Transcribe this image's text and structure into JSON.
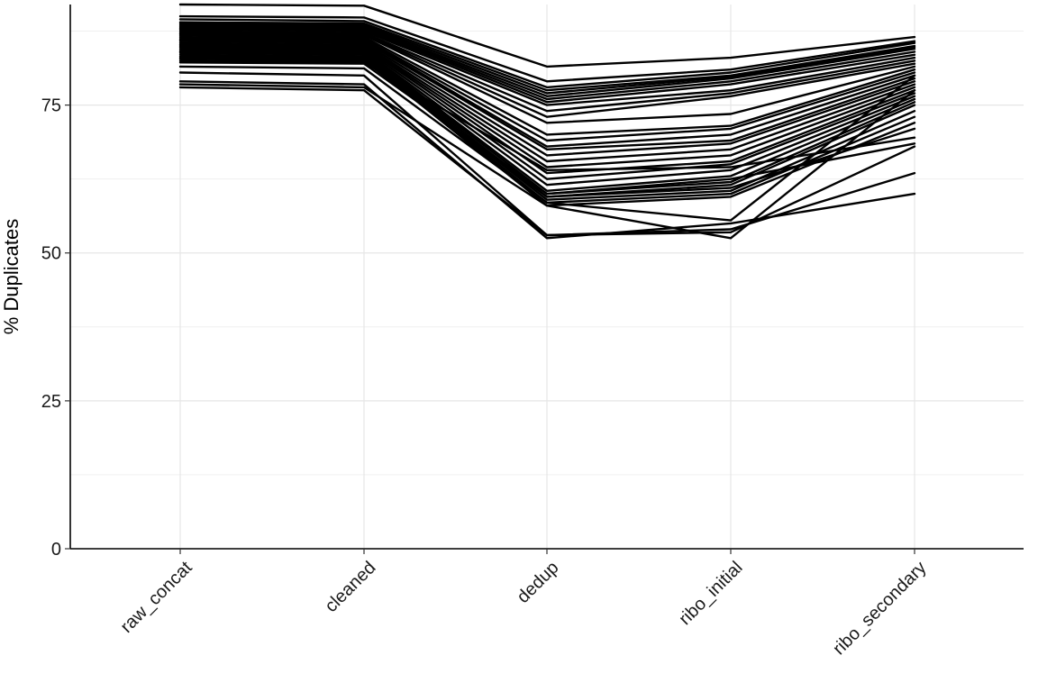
{
  "chart_data": {
    "type": "line",
    "title": "",
    "xlabel": "",
    "ylabel": "% Duplicates",
    "categories": [
      "raw_concat",
      "cleaned",
      "dedup",
      "ribo_initial",
      "ribo_secondary"
    ],
    "ylim": [
      0,
      92
    ],
    "yticks": [
      0,
      25,
      50,
      75
    ],
    "grid": true,
    "legend": "none",
    "line_color": "#000000",
    "series": [
      {
        "values": [
          92.0,
          91.8,
          81.5,
          83.0,
          86.5
        ]
      },
      {
        "values": [
          90.0,
          89.8,
          79.0,
          81.0,
          85.8
        ]
      },
      {
        "values": [
          89.5,
          89.2,
          78.0,
          80.5,
          85.5
        ]
      },
      {
        "values": [
          89.0,
          88.8,
          77.5,
          80.0,
          85.0
        ]
      },
      {
        "values": [
          88.8,
          88.5,
          77.0,
          79.8,
          84.8
        ]
      },
      {
        "values": [
          88.5,
          88.2,
          76.5,
          79.5,
          84.5
        ]
      },
      {
        "values": [
          88.2,
          88.0,
          76.0,
          79.0,
          84.0
        ]
      },
      {
        "values": [
          88.0,
          87.8,
          75.5,
          78.5,
          83.5
        ]
      },
      {
        "values": [
          87.8,
          87.5,
          75.0,
          77.5,
          83.0
        ]
      },
      {
        "values": [
          87.5,
          87.2,
          74.0,
          77.0,
          82.5
        ]
      },
      {
        "values": [
          87.2,
          87.0,
          73.0,
          76.5,
          82.0
        ]
      },
      {
        "values": [
          87.0,
          86.8,
          72.0,
          73.5,
          81.5
        ]
      },
      {
        "values": [
          86.8,
          86.5,
          70.0,
          71.5,
          81.0
        ]
      },
      {
        "values": [
          86.5,
          86.2,
          69.0,
          71.0,
          80.5
        ]
      },
      {
        "values": [
          86.2,
          86.0,
          68.0,
          70.0,
          80.0
        ]
      },
      {
        "values": [
          86.0,
          85.8,
          67.5,
          69.0,
          79.5
        ]
      },
      {
        "values": [
          85.8,
          85.5,
          66.5,
          68.5,
          79.0
        ]
      },
      {
        "values": [
          85.5,
          85.2,
          65.5,
          67.5,
          78.5
        ]
      },
      {
        "values": [
          85.2,
          85.0,
          64.5,
          66.5,
          78.0
        ]
      },
      {
        "values": [
          85.0,
          84.8,
          63.5,
          65.5,
          77.5
        ]
      },
      {
        "values": [
          84.8,
          84.5,
          62.5,
          65.0,
          77.0
        ]
      },
      {
        "values": [
          84.5,
          84.2,
          61.5,
          64.0,
          76.5
        ]
      },
      {
        "values": [
          84.2,
          84.0,
          60.5,
          63.0,
          76.0
        ]
      },
      {
        "values": [
          84.0,
          83.8,
          60.0,
          62.0,
          75.5
        ]
      },
      {
        "values": [
          83.8,
          83.5,
          59.5,
          61.5,
          75.0
        ]
      },
      {
        "values": [
          83.5,
          83.2,
          59.0,
          60.5,
          74.0
        ]
      },
      {
        "values": [
          83.2,
          83.0,
          58.5,
          60.0,
          73.0
        ]
      },
      {
        "values": [
          83.0,
          82.8,
          58.0,
          59.5,
          72.0
        ]
      },
      {
        "values": [
          82.8,
          82.5,
          59.5,
          61.0,
          71.0
        ]
      },
      {
        "values": [
          82.5,
          82.2,
          64.0,
          64.5,
          69.5
        ]
      },
      {
        "values": [
          82.2,
          82.0,
          60.0,
          62.5,
          68.5
        ]
      },
      {
        "values": [
          81.5,
          81.2,
          58.5,
          55.5,
          80.0
        ]
      },
      {
        "values": [
          80.5,
          80.0,
          53.0,
          54.0,
          63.5
        ]
      },
      {
        "values": [
          79.0,
          78.5,
          52.5,
          55.0,
          60.0
        ]
      },
      {
        "values": [
          78.5,
          78.0,
          58.0,
          52.5,
          77.5
        ]
      },
      {
        "values": [
          78.0,
          77.5,
          53.0,
          53.5,
          68.0
        ]
      }
    ]
  }
}
